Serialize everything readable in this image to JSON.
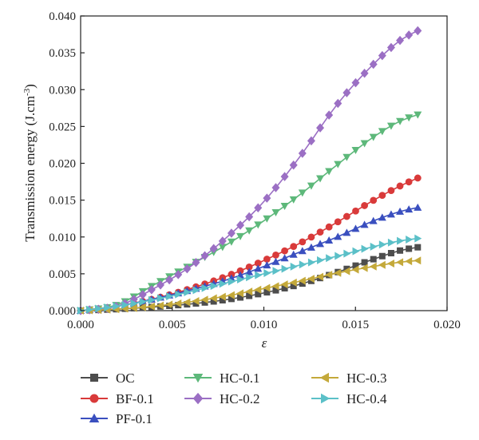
{
  "chart_data": {
    "type": "line",
    "title": "",
    "xlabel": "ε",
    "ylabel": "Transmission energy (J.cm",
    "ylabel_sup": "-3",
    "ylabel_end": ")",
    "xlim": [
      0.0,
      0.02
    ],
    "ylim": [
      0.0,
      0.04
    ],
    "xticks": [
      "0.000",
      "0.005",
      "0.010",
      "0.015",
      "0.020"
    ],
    "yticks": [
      "0.000",
      "0.005",
      "0.010",
      "0.015",
      "0.020",
      "0.025",
      "0.030",
      "0.035",
      "0.040"
    ],
    "grid": false,
    "legend_position": "bottom",
    "series": [
      {
        "name": "OC",
        "color": "#4d4d4d",
        "marker": "square",
        "x": [
          0,
          0.002,
          0.004,
          0.006,
          0.008,
          0.01,
          0.012,
          0.014,
          0.016,
          0.0175,
          0.0184
        ],
        "y": [
          0,
          0.0002,
          0.0005,
          0.0009,
          0.0015,
          0.0024,
          0.0036,
          0.0052,
          0.007,
          0.0082,
          0.0086
        ]
      },
      {
        "name": "BF-0.1",
        "color": "#d93a3a",
        "marker": "circle",
        "x": [
          0,
          0.002,
          0.004,
          0.006,
          0.008,
          0.01,
          0.012,
          0.014,
          0.016,
          0.0175,
          0.0184
        ],
        "y": [
          0,
          0.0006,
          0.0016,
          0.003,
          0.0047,
          0.0068,
          0.0092,
          0.012,
          0.015,
          0.017,
          0.018
        ]
      },
      {
        "name": "PF-0.1",
        "color": "#3a4fbf",
        "marker": "triangle-up",
        "x": [
          0,
          0.002,
          0.004,
          0.006,
          0.008,
          0.01,
          0.012,
          0.014,
          0.016,
          0.0175,
          0.0184
        ],
        "y": [
          0,
          0.0006,
          0.0016,
          0.0028,
          0.0042,
          0.006,
          0.008,
          0.01,
          0.0122,
          0.0135,
          0.014
        ]
      },
      {
        "name": "HC-0.1",
        "color": "#5db87a",
        "marker": "triangle-down",
        "x": [
          0,
          0.002,
          0.004,
          0.006,
          0.008,
          0.01,
          0.012,
          0.014,
          0.016,
          0.0175,
          0.0184
        ],
        "y": [
          0,
          0.0008,
          0.0035,
          0.0062,
          0.009,
          0.0122,
          0.0158,
          0.0198,
          0.0236,
          0.0258,
          0.0266
        ]
      },
      {
        "name": "HC-0.2",
        "color": "#9b6fc4",
        "marker": "diamond",
        "x": [
          0,
          0.002,
          0.004,
          0.006,
          0.008,
          0.01,
          0.012,
          0.014,
          0.016,
          0.0175,
          0.0184
        ],
        "y": [
          0,
          0.0006,
          0.003,
          0.006,
          0.01,
          0.0148,
          0.021,
          0.028,
          0.0335,
          0.0368,
          0.038
        ]
      },
      {
        "name": "HC-0.3",
        "color": "#c4a93a",
        "marker": "triangle-left",
        "x": [
          0,
          0.002,
          0.004,
          0.006,
          0.008,
          0.01,
          0.012,
          0.014,
          0.016,
          0.0175,
          0.0184
        ],
        "y": [
          0,
          0.0002,
          0.0006,
          0.0012,
          0.002,
          0.003,
          0.004,
          0.0051,
          0.006,
          0.0066,
          0.0068
        ]
      },
      {
        "name": "HC-0.4",
        "color": "#5bc0c8",
        "marker": "triangle-right",
        "x": [
          0,
          0.002,
          0.004,
          0.006,
          0.008,
          0.01,
          0.012,
          0.014,
          0.016,
          0.0175,
          0.0184
        ],
        "y": [
          0,
          0.0006,
          0.0015,
          0.0026,
          0.0038,
          0.005,
          0.0062,
          0.0074,
          0.0087,
          0.0095,
          0.0098
        ]
      }
    ]
  }
}
